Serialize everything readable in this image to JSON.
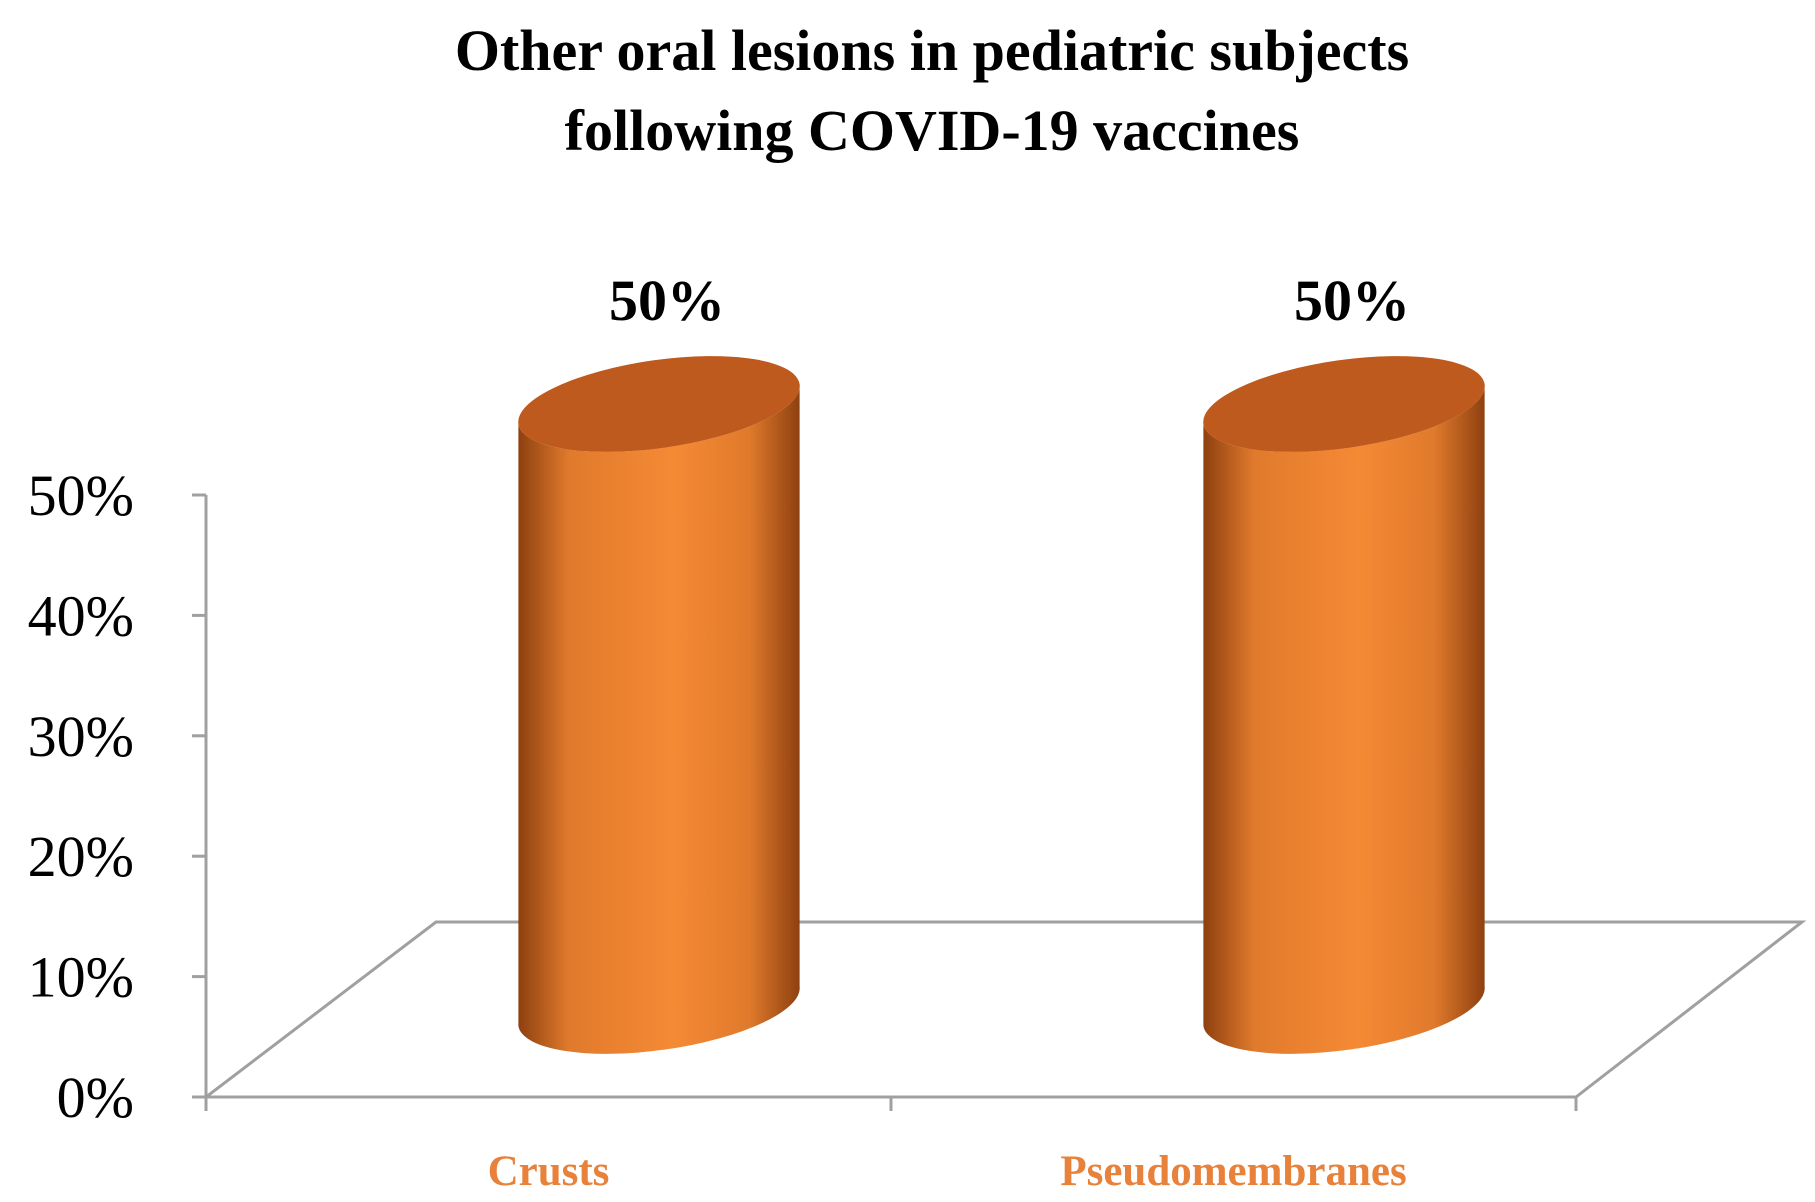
{
  "chart_data": {
    "type": "bar",
    "style": "3d-cylinder",
    "title_lines": [
      "Other oral lesions in pediatric subjects",
      "following COVID-19 vaccines"
    ],
    "categories": [
      "Crusts",
      "Pseudomembranes"
    ],
    "values": [
      50,
      50
    ],
    "data_labels": [
      "50%",
      "50%"
    ],
    "y_ticks": [
      {
        "value": 0,
        "label": "0%"
      },
      {
        "value": 10,
        "label": "10%"
      },
      {
        "value": 20,
        "label": "20%"
      },
      {
        "value": 30,
        "label": "30%"
      },
      {
        "value": 40,
        "label": "40%"
      },
      {
        "value": 50,
        "label": "50%"
      }
    ],
    "ylim": [
      0,
      50
    ],
    "xlabel": "",
    "ylabel": "",
    "grid": false,
    "legend": "none",
    "colors": {
      "bar_light": "#f58a35",
      "bar_mid": "#e07a2c",
      "bar_dark": "#8e4010",
      "bar_top": "#bf5a1e",
      "category_label": "#e8813a",
      "axis": "#a0a0a0"
    }
  }
}
